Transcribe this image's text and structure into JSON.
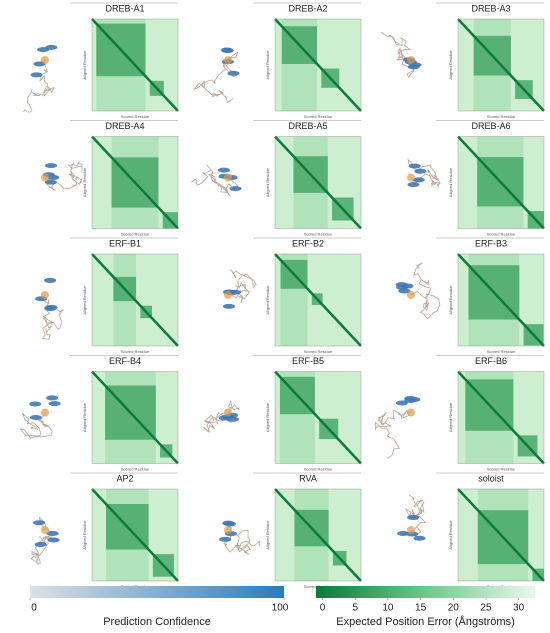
{
  "panels": [
    {
      "title": "DREB-A1",
      "y_axis_label": "Aligned Residue",
      "x_axis_label": "Scored Residue"
    },
    {
      "title": "DREB-A2",
      "y_axis_label": "Aligned Residue",
      "x_axis_label": "Scored Residue"
    },
    {
      "title": "DREB-A3",
      "y_axis_label": "Aligned Residue",
      "x_axis_label": "Scored Residue"
    },
    {
      "title": "DREB-A4",
      "y_axis_label": "Aligned Residue",
      "x_axis_label": "Scored Residue"
    },
    {
      "title": "DREB-A5",
      "y_axis_label": "Aligned Residue",
      "x_axis_label": "Scored Residue"
    },
    {
      "title": "DREB-A6",
      "y_axis_label": "Aligned Residue",
      "x_axis_label": "Scored Residue"
    },
    {
      "title": "ERF-B1",
      "y_axis_label": "Aligned Residue",
      "x_axis_label": "Scored Residue"
    },
    {
      "title": "ERF-B2",
      "y_axis_label": "Aligned Residue",
      "x_axis_label": "Scored Residue"
    },
    {
      "title": "ERF-B3",
      "y_axis_label": "Aligned Residue",
      "x_axis_label": "Scored Residue"
    },
    {
      "title": "ERF-B4",
      "y_axis_label": "Aligned Residue",
      "x_axis_label": "Scored Residue"
    },
    {
      "title": "ERF-B5",
      "y_axis_label": "Aligned Residue",
      "x_axis_label": "Scored Residue"
    },
    {
      "title": "ERF-B6",
      "y_axis_label": "Aligned Residue",
      "x_axis_label": "Scored Residue"
    },
    {
      "title": "AP2",
      "y_axis_label": "Aligned Residue",
      "x_axis_label": "Scored Residue"
    },
    {
      "title": "RVA",
      "y_axis_label": "Aligned Residue",
      "x_axis_label": "Scored Residue"
    },
    {
      "title": "soloist",
      "y_axis_label": "Aligned Residue",
      "x_axis_label": "Scored Residue"
    }
  ],
  "colorbars": [
    {
      "label": "Prediction Confidence",
      "range": [
        0,
        100
      ],
      "ticks": [
        0,
        100
      ]
    },
    {
      "label": "Expected Position Error (Ångströms)",
      "range": [
        -1,
        32.5
      ],
      "ticks": [
        0,
        5,
        10,
        15,
        20,
        25,
        30
      ]
    }
  ]
}
